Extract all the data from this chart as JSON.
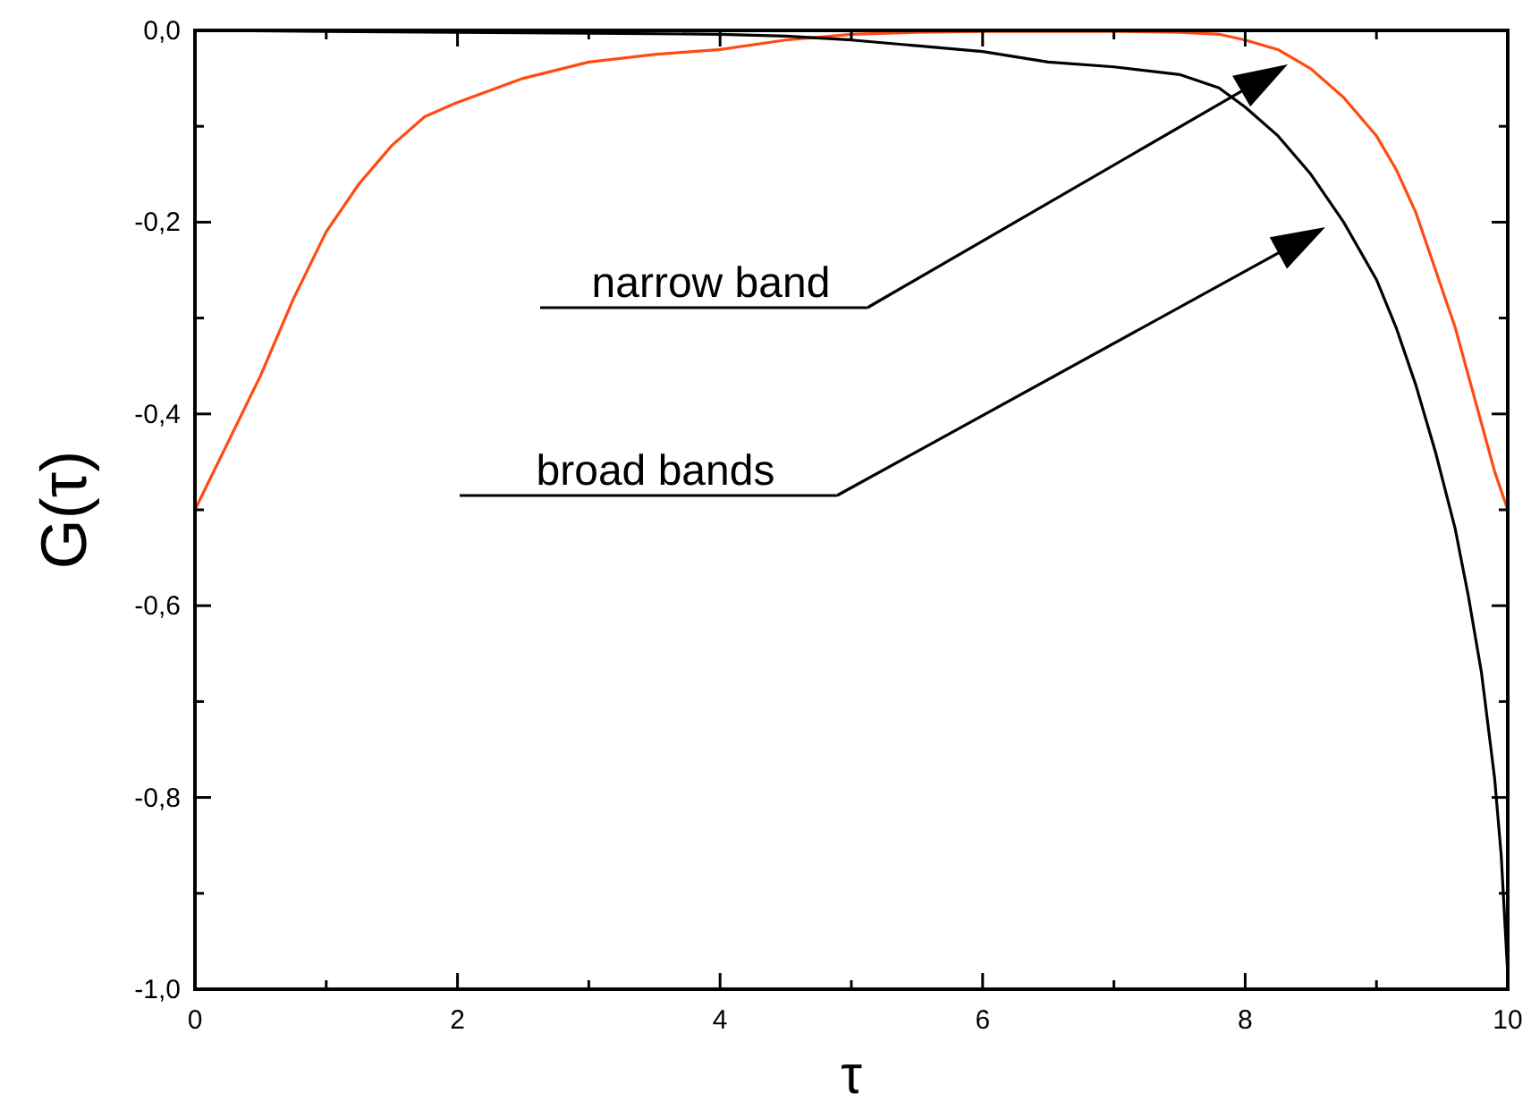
{
  "chart_data": {
    "type": "line",
    "xlabel": "τ",
    "ylabel": "G(τ)",
    "xlim": [
      0,
      10
    ],
    "ylim": [
      -1.0,
      0.0
    ],
    "xticks": [
      0,
      {
        "value": 1,
        "label": null
      },
      2,
      {
        "value": 3,
        "label": null
      },
      4,
      {
        "value": 5,
        "label": null
      },
      6,
      {
        "value": 7,
        "label": null
      },
      8,
      {
        "value": 9,
        "label": null
      },
      10
    ],
    "yticks": [
      {
        "value": -1.0,
        "label": "-1,0"
      },
      {
        "value": -0.9,
        "label": null
      },
      {
        "value": -0.8,
        "label": "-0,8"
      },
      {
        "value": -0.7,
        "label": null
      },
      {
        "value": -0.6,
        "label": "-0,6"
      },
      {
        "value": -0.5,
        "label": null
      },
      {
        "value": -0.4,
        "label": "-0,4"
      },
      {
        "value": -0.3,
        "label": null
      },
      {
        "value": -0.2,
        "label": "-0,2"
      },
      {
        "value": -0.1,
        "label": null
      },
      {
        "value": 0.0,
        "label": "0,0"
      }
    ],
    "grid": false,
    "marker": "none",
    "line_style": "solid",
    "annotations": [
      "narrow band",
      "broad bands"
    ],
    "series": [
      {
        "color": "#ff4a12",
        "x": [
          0,
          0.25,
          0.5,
          0.75,
          1,
          1.25,
          1.5,
          1.75,
          2,
          2.5,
          3,
          3.5,
          4,
          4.5,
          5,
          5.5,
          6,
          6.5,
          7,
          7.5,
          7.8,
          8,
          8.25,
          8.5,
          8.75,
          9,
          9.15,
          9.3,
          9.45,
          9.6,
          9.7,
          9.8,
          9.9,
          10
        ],
        "values": [
          -0.5,
          -0.43,
          -0.36,
          -0.28,
          -0.21,
          -0.16,
          -0.12,
          -0.09,
          -0.075,
          -0.05,
          -0.033,
          -0.025,
          -0.02,
          -0.01,
          -0.004,
          -0.002,
          -0.001,
          -0.001,
          -0.001,
          -0.002,
          -0.004,
          -0.01,
          -0.02,
          -0.04,
          -0.07,
          -0.11,
          -0.145,
          -0.19,
          -0.25,
          -0.31,
          -0.36,
          -0.41,
          -0.46,
          -0.5
        ]
      },
      {
        "color": "#000000",
        "x": [
          0,
          1,
          2,
          3,
          4,
          4.5,
          5,
          5.5,
          6,
          6.5,
          7,
          7.5,
          7.8,
          8,
          8.25,
          8.5,
          8.75,
          9,
          9.15,
          9.3,
          9.45,
          9.6,
          9.7,
          9.8,
          9.9,
          9.95,
          10
        ],
        "values": [
          0,
          -0.001,
          -0.002,
          -0.003,
          -0.004,
          -0.006,
          -0.01,
          -0.016,
          -0.022,
          -0.033,
          -0.038,
          -0.046,
          -0.06,
          -0.08,
          -0.11,
          -0.15,
          -0.2,
          -0.26,
          -0.31,
          -0.37,
          -0.44,
          -0.52,
          -0.59,
          -0.67,
          -0.78,
          -0.86,
          -0.985
        ]
      }
    ]
  }
}
